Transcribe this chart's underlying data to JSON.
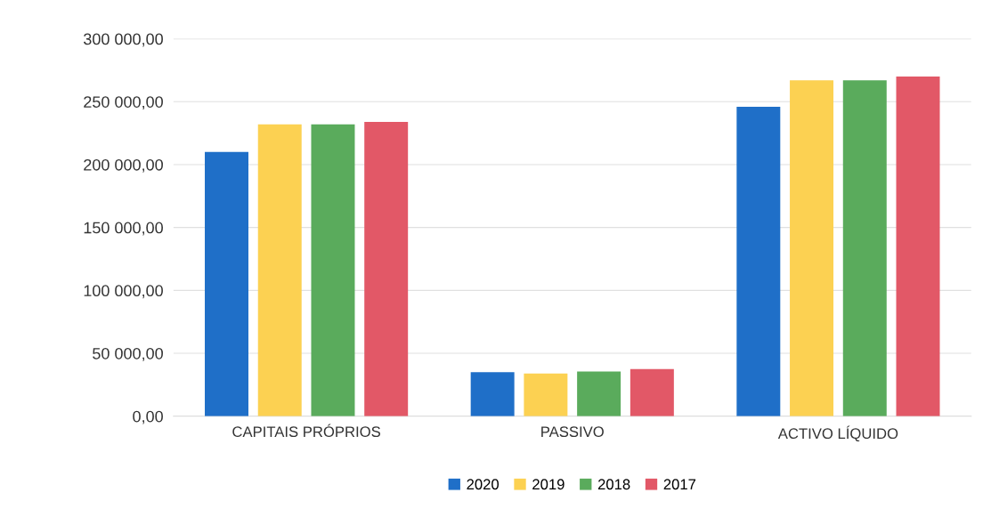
{
  "chart_data": {
    "type": "bar",
    "categories": [
      "CAPITAIS PRÓPRIOS",
      "PASSIVO",
      "ACTIVO LÍQUIDO"
    ],
    "series": [
      {
        "name": "2020",
        "color": "#1f6fc8",
        "values": [
          210000,
          35000,
          246000
        ]
      },
      {
        "name": "2019",
        "color": "#fcd152",
        "values": [
          232000,
          34000,
          267000
        ]
      },
      {
        "name": "2018",
        "color": "#5aab5c",
        "values": [
          232000,
          35500,
          267000
        ]
      },
      {
        "name": "2017",
        "color": "#e25867",
        "values": [
          234000,
          37500,
          270000
        ]
      }
    ],
    "ylim": [
      0,
      300000
    ],
    "yticks": [
      {
        "value": 0,
        "label": "0,00"
      },
      {
        "value": 50000,
        "label": "50 000,00"
      },
      {
        "value": 100000,
        "label": "100 000,00"
      },
      {
        "value": 150000,
        "label": "150 000,00"
      },
      {
        "value": 200000,
        "label": "200 000,00"
      },
      {
        "value": 250000,
        "label": "250 000,00"
      },
      {
        "value": 300000,
        "label": "300 000,00"
      }
    ],
    "grid": "y",
    "legend": "bottom"
  }
}
